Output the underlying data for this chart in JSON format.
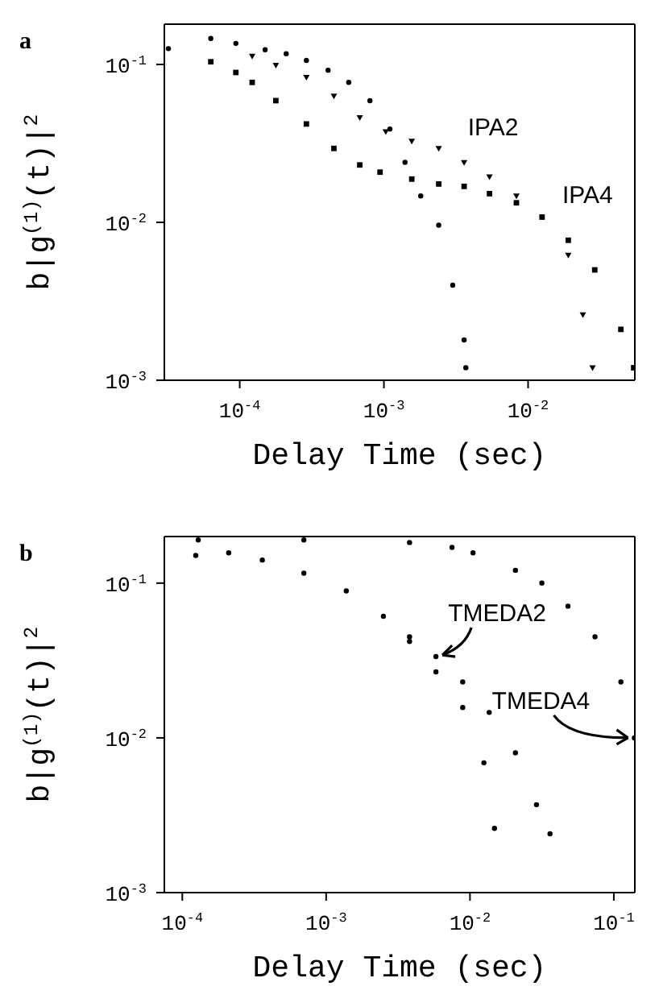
{
  "chart_data": [
    {
      "type": "scatter",
      "title": "a",
      "xlabel": "Delay Time (sec)",
      "ylabel": "b|g$^{(1)}$(t)|$^{2}$",
      "log": "xy",
      "xlim": [
        3e-05,
        0.055
      ],
      "ylim": [
        0.001,
        0.18
      ],
      "xticks": [
        {
          "value": 0.0001,
          "label": "10$^{-4}$"
        },
        {
          "value": 0.001,
          "label": "10$^{-3}$"
        },
        {
          "value": 0.01,
          "label": "10$^{-2}$"
        }
      ],
      "yticks": [
        {
          "value": 0.001,
          "label": "10$^{-3}$"
        },
        {
          "value": 0.01,
          "label": "10$^{-2}$"
        },
        {
          "value": 0.1,
          "label": "10$^{-1}$"
        }
      ],
      "series": [
        {
          "color": "#000000",
          "marker": "circle",
          "x": [
            3.2e-05,
            6.3e-05,
            9.4e-05,
            0.00015,
            0.00021,
            0.00029,
            0.00041,
            0.00057,
            0.0008,
            0.0011,
            0.0014,
            0.0018,
            0.0024,
            0.003,
            0.0036,
            0.0037
          ],
          "values": [
            0.126,
            0.146,
            0.136,
            0.124,
            0.117,
            0.106,
            0.092,
            0.077,
            0.059,
            0.039,
            0.024,
            0.0147,
            0.0096,
            0.004,
            0.0018,
            0.0012
          ]
        },
        {
          "name": "IPA2",
          "color": "#000000",
          "marker": "triangle",
          "x": [
            0.000122,
            0.000178,
            0.00029,
            0.00045,
            0.00068,
            0.00103,
            0.00156,
            0.0024,
            0.0036,
            0.0054,
            0.0083,
            0.019,
            0.024,
            0.028
          ],
          "values": [
            0.113,
            0.099,
            0.083,
            0.063,
            0.046,
            0.0375,
            0.0327,
            0.0294,
            0.0239,
            0.0194,
            0.0147,
            0.0062,
            0.0026,
            0.0012
          ]
        },
        {
          "name": "IPA4",
          "color": "#000000",
          "marker": "square",
          "x": [
            6.3e-05,
            9.4e-05,
            0.000122,
            0.000178,
            0.00029,
            0.00045,
            0.00068,
            0.00094,
            0.00156,
            0.0024,
            0.0036,
            0.0054,
            0.0083,
            0.0125,
            0.019,
            0.029,
            0.044,
            0.054
          ],
          "values": [
            0.104,
            0.089,
            0.077,
            0.059,
            0.042,
            0.0294,
            0.0231,
            0.0208,
            0.0188,
            0.0175,
            0.0169,
            0.0152,
            0.0133,
            0.0108,
            0.0077,
            0.005,
            0.0021,
            0.0012
          ]
        }
      ]
    },
    {
      "type": "scatter",
      "title": "b",
      "xlabel": "Delay Time (sec)",
      "ylabel": "b|g$^{(1)}$(t)|$^{2}$",
      "log": "xy",
      "marker": "circle",
      "xlim": [
        7.5e-05,
        0.14
      ],
      "ylim": [
        0.001,
        0.2
      ],
      "xticks": [
        {
          "value": 0.0001,
          "label": "10$^{-4}$"
        },
        {
          "value": 0.001,
          "label": "10$^{-3}$"
        },
        {
          "value": 0.01,
          "label": "10$^{-2}$"
        },
        {
          "value": 0.1,
          "label": "10$^{-1}$"
        }
      ],
      "yticks": [
        {
          "value": 0.001,
          "label": "10$^{-3}$"
        },
        {
          "value": 0.01,
          "label": "10$^{-2}$"
        },
        {
          "value": 0.1,
          "label": "10$^{-1}$"
        }
      ],
      "series": [
        {
          "color": "#000000",
          "x": [
            0.000124,
            0.00021,
            0.00036,
            0.0007,
            0.00138,
            0.0025,
            0.0038,
            0.0058,
            0.0089,
            0.0125,
            0.0148
          ],
          "values": [
            0.151,
            0.157,
            0.141,
            0.116,
            0.089,
            0.061,
            0.042,
            0.0267,
            0.0157,
            0.0069,
            0.0026
          ]
        },
        {
          "name": "TMEDA2",
          "color": "#000000",
          "x": [
            0.0038,
            0.0058,
            0.0089,
            0.0136,
            0.0207,
            0.029,
            0.036
          ],
          "values": [
            0.045,
            0.0335,
            0.023,
            0.0146,
            0.008,
            0.0037,
            0.0024
          ]
        },
        {
          "name": "TMEDA4",
          "color": "#000000",
          "x": [
            0.000129,
            0.0007,
            0.0038,
            0.0075,
            0.0105,
            0.0207,
            0.0316,
            0.048,
            0.074,
            0.112,
            0.139
          ],
          "values": [
            0.19,
            0.19,
            0.183,
            0.17,
            0.157,
            0.121,
            0.1,
            0.071,
            0.045,
            0.023,
            0.01
          ]
        }
      ]
    }
  ]
}
